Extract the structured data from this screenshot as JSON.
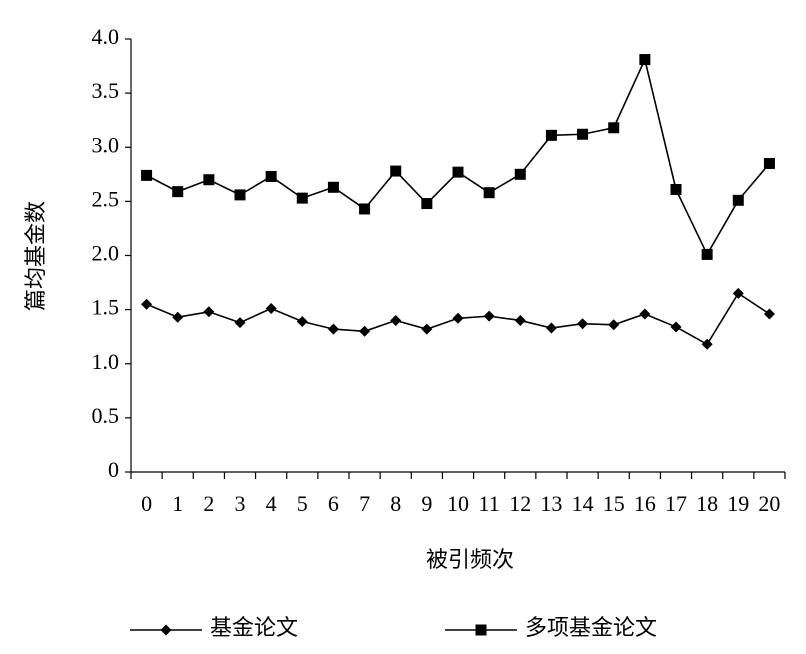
{
  "chart_data": {
    "type": "line",
    "x_label": "被引频次",
    "y_label": "篇均基金数",
    "categories": [
      "0",
      "1",
      "2",
      "3",
      "4",
      "5",
      "6",
      "7",
      "8",
      "9",
      "10",
      "11",
      "12",
      "13",
      "14",
      "15",
      "16",
      "17",
      "18",
      "19",
      "20"
    ],
    "series": [
      {
        "name": "基金论文",
        "color": "#000000",
        "marker": "diamond",
        "values": [
          1.55,
          1.43,
          1.48,
          1.38,
          1.51,
          1.39,
          1.32,
          1.3,
          1.4,
          1.32,
          1.42,
          1.44,
          1.4,
          1.33,
          1.37,
          1.36,
          1.46,
          1.34,
          1.18,
          1.65,
          1.46
        ]
      },
      {
        "name": "多项基金论文",
        "color": "#000000",
        "marker": "square",
        "values": [
          2.74,
          2.59,
          2.7,
          2.56,
          2.73,
          2.53,
          2.63,
          2.43,
          2.78,
          2.48,
          2.77,
          2.58,
          2.75,
          3.11,
          3.12,
          3.18,
          3.81,
          2.61,
          2.01,
          2.51,
          2.85
        ]
      }
    ],
    "ylim": [
      0,
      4
    ],
    "yticks": [
      0,
      0.5,
      {
        "value": 1,
        "label": "1.0"
      },
      1.5,
      {
        "value": 2,
        "label": "2.0"
      },
      2.5,
      {
        "value": 3,
        "label": "3.0"
      },
      3.5,
      {
        "value": 4,
        "label": "4.0"
      }
    ],
    "grid": false,
    "legend": "bottom"
  }
}
